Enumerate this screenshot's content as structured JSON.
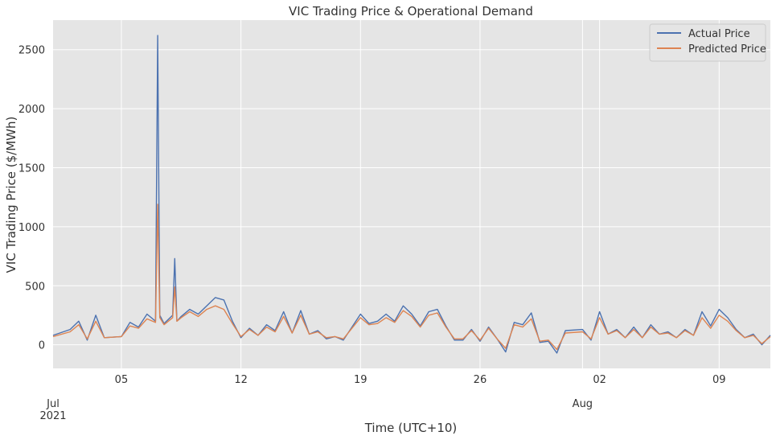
{
  "chart_data": {
    "type": "line",
    "title": "VIC Trading Price & Operational Demand",
    "xlabel": "Time (UTC+10)",
    "ylabel": "VIC Trading Price ($/MWh)",
    "x_start": "2021-07-01",
    "x_end": "2021-08-12",
    "ylim": [
      -200,
      2750
    ],
    "yticks": [
      0,
      500,
      1000,
      1500,
      2000,
      2500
    ],
    "xticks": [
      {
        "date": "2021-07-05",
        "label": "05",
        "sub": ""
      },
      {
        "date": "2021-07-12",
        "label": "12",
        "sub": ""
      },
      {
        "date": "2021-07-19",
        "label": "19",
        "sub": ""
      },
      {
        "date": "2021-07-26",
        "label": "26",
        "sub": ""
      },
      {
        "date": "2021-08-02",
        "label": "02",
        "sub": ""
      },
      {
        "date": "2021-08-09",
        "label": "09",
        "sub": ""
      }
    ],
    "major_xticks": [
      {
        "date": "2021-07-01",
        "label": "Jul",
        "sub": "2021"
      },
      {
        "date": "2021-08-01",
        "label": "Aug",
        "sub": ""
      }
    ],
    "grid": true,
    "legend_position": "top-right",
    "series": [
      {
        "name": "Actual Price",
        "color": "#4c72b0",
        "points": [
          [
            "2021-07-01",
            80
          ],
          [
            "2021-07-02",
            130
          ],
          [
            "2021-07-02T12:00",
            200
          ],
          [
            "2021-07-03",
            40
          ],
          [
            "2021-07-03T12:00",
            250
          ],
          [
            "2021-07-04",
            60
          ],
          [
            "2021-07-05",
            70
          ],
          [
            "2021-07-05T12:00",
            190
          ],
          [
            "2021-07-06",
            150
          ],
          [
            "2021-07-06T12:00",
            260
          ],
          [
            "2021-07-07",
            200
          ],
          [
            "2021-07-07T03:00",
            2620
          ],
          [
            "2021-07-07T06:00",
            250
          ],
          [
            "2021-07-07T12:00",
            180
          ],
          [
            "2021-07-08",
            250
          ],
          [
            "2021-07-08T03:00",
            730
          ],
          [
            "2021-07-08T06:00",
            200
          ],
          [
            "2021-07-08T12:00",
            240
          ],
          [
            "2021-07-09",
            300
          ],
          [
            "2021-07-09T12:00",
            260
          ],
          [
            "2021-07-10",
            330
          ],
          [
            "2021-07-10T12:00",
            400
          ],
          [
            "2021-07-11",
            380
          ],
          [
            "2021-07-11T12:00",
            200
          ],
          [
            "2021-07-12",
            60
          ],
          [
            "2021-07-12T12:00",
            140
          ],
          [
            "2021-07-13",
            80
          ],
          [
            "2021-07-13T12:00",
            170
          ],
          [
            "2021-07-14",
            120
          ],
          [
            "2021-07-14T12:00",
            280
          ],
          [
            "2021-07-15",
            100
          ],
          [
            "2021-07-15T12:00",
            290
          ],
          [
            "2021-07-16",
            90
          ],
          [
            "2021-07-16T12:00",
            120
          ],
          [
            "2021-07-17",
            50
          ],
          [
            "2021-07-17T12:00",
            70
          ],
          [
            "2021-07-18",
            40
          ],
          [
            "2021-07-18T12:00",
            150
          ],
          [
            "2021-07-19",
            260
          ],
          [
            "2021-07-19T12:00",
            180
          ],
          [
            "2021-07-20",
            200
          ],
          [
            "2021-07-20T12:00",
            260
          ],
          [
            "2021-07-21",
            200
          ],
          [
            "2021-07-21T12:00",
            330
          ],
          [
            "2021-07-22",
            260
          ],
          [
            "2021-07-22T12:00",
            160
          ],
          [
            "2021-07-23",
            280
          ],
          [
            "2021-07-23T12:00",
            300
          ],
          [
            "2021-07-24",
            160
          ],
          [
            "2021-07-24T12:00",
            40
          ],
          [
            "2021-07-25",
            40
          ],
          [
            "2021-07-25T12:00",
            130
          ],
          [
            "2021-07-26",
            30
          ],
          [
            "2021-07-26T12:00",
            150
          ],
          [
            "2021-07-27",
            50
          ],
          [
            "2021-07-27T12:00",
            -60
          ],
          [
            "2021-07-28",
            190
          ],
          [
            "2021-07-28T12:00",
            170
          ],
          [
            "2021-07-29",
            270
          ],
          [
            "2021-07-29T12:00",
            20
          ],
          [
            "2021-07-30",
            30
          ],
          [
            "2021-07-30T12:00",
            -70
          ],
          [
            "2021-07-31",
            120
          ],
          [
            "2021-08-01",
            130
          ],
          [
            "2021-08-01T12:00",
            40
          ],
          [
            "2021-08-02",
            280
          ],
          [
            "2021-08-02T12:00",
            90
          ],
          [
            "2021-08-03",
            130
          ],
          [
            "2021-08-03T12:00",
            60
          ],
          [
            "2021-08-04",
            150
          ],
          [
            "2021-08-04T12:00",
            60
          ],
          [
            "2021-08-05",
            170
          ],
          [
            "2021-08-05T12:00",
            90
          ],
          [
            "2021-08-06",
            110
          ],
          [
            "2021-08-06T12:00",
            60
          ],
          [
            "2021-08-07",
            130
          ],
          [
            "2021-08-07T12:00",
            80
          ],
          [
            "2021-08-08",
            280
          ],
          [
            "2021-08-08T12:00",
            160
          ],
          [
            "2021-08-09",
            300
          ],
          [
            "2021-08-09T12:00",
            230
          ],
          [
            "2021-08-10",
            130
          ],
          [
            "2021-08-10T12:00",
            60
          ],
          [
            "2021-08-11",
            90
          ],
          [
            "2021-08-11T12:00",
            0
          ],
          [
            "2021-08-12",
            80
          ]
        ]
      },
      {
        "name": "Predicted Price",
        "color": "#dd8452",
        "points": [
          [
            "2021-07-01",
            70
          ],
          [
            "2021-07-02",
            110
          ],
          [
            "2021-07-02T12:00",
            170
          ],
          [
            "2021-07-03",
            50
          ],
          [
            "2021-07-03T12:00",
            200
          ],
          [
            "2021-07-04",
            60
          ],
          [
            "2021-07-05",
            70
          ],
          [
            "2021-07-05T12:00",
            160
          ],
          [
            "2021-07-06",
            140
          ],
          [
            "2021-07-06T12:00",
            220
          ],
          [
            "2021-07-07",
            190
          ],
          [
            "2021-07-07T03:00",
            1190
          ],
          [
            "2021-07-07T06:00",
            230
          ],
          [
            "2021-07-07T12:00",
            170
          ],
          [
            "2021-07-08",
            230
          ],
          [
            "2021-07-08T03:00",
            490
          ],
          [
            "2021-07-08T06:00",
            200
          ],
          [
            "2021-07-08T12:00",
            230
          ],
          [
            "2021-07-09",
            280
          ],
          [
            "2021-07-09T12:00",
            240
          ],
          [
            "2021-07-10",
            300
          ],
          [
            "2021-07-10T12:00",
            330
          ],
          [
            "2021-07-11",
            300
          ],
          [
            "2021-07-11T12:00",
            180
          ],
          [
            "2021-07-12",
            70
          ],
          [
            "2021-07-12T12:00",
            130
          ],
          [
            "2021-07-13",
            80
          ],
          [
            "2021-07-13T12:00",
            150
          ],
          [
            "2021-07-14",
            110
          ],
          [
            "2021-07-14T12:00",
            240
          ],
          [
            "2021-07-15",
            100
          ],
          [
            "2021-07-15T12:00",
            250
          ],
          [
            "2021-07-16",
            90
          ],
          [
            "2021-07-16T12:00",
            110
          ],
          [
            "2021-07-17",
            60
          ],
          [
            "2021-07-17T12:00",
            70
          ],
          [
            "2021-07-18",
            50
          ],
          [
            "2021-07-18T12:00",
            140
          ],
          [
            "2021-07-19",
            230
          ],
          [
            "2021-07-19T12:00",
            170
          ],
          [
            "2021-07-20",
            180
          ],
          [
            "2021-07-20T12:00",
            230
          ],
          [
            "2021-07-21",
            190
          ],
          [
            "2021-07-21T12:00",
            290
          ],
          [
            "2021-07-22",
            240
          ],
          [
            "2021-07-22T12:00",
            150
          ],
          [
            "2021-07-23",
            250
          ],
          [
            "2021-07-23T12:00",
            270
          ],
          [
            "2021-07-24",
            150
          ],
          [
            "2021-07-24T12:00",
            50
          ],
          [
            "2021-07-25",
            50
          ],
          [
            "2021-07-25T12:00",
            120
          ],
          [
            "2021-07-26",
            40
          ],
          [
            "2021-07-26T12:00",
            140
          ],
          [
            "2021-07-27",
            50
          ],
          [
            "2021-07-27T12:00",
            -30
          ],
          [
            "2021-07-28",
            170
          ],
          [
            "2021-07-28T12:00",
            150
          ],
          [
            "2021-07-29",
            220
          ],
          [
            "2021-07-29T12:00",
            30
          ],
          [
            "2021-07-30",
            40
          ],
          [
            "2021-07-30T12:00",
            -40
          ],
          [
            "2021-07-31",
            100
          ],
          [
            "2021-08-01",
            110
          ],
          [
            "2021-08-01T12:00",
            50
          ],
          [
            "2021-08-02",
            230
          ],
          [
            "2021-08-02T12:00",
            90
          ],
          [
            "2021-08-03",
            120
          ],
          [
            "2021-08-03T12:00",
            60
          ],
          [
            "2021-08-04",
            130
          ],
          [
            "2021-08-04T12:00",
            60
          ],
          [
            "2021-08-05",
            150
          ],
          [
            "2021-08-05T12:00",
            90
          ],
          [
            "2021-08-06",
            100
          ],
          [
            "2021-08-06T12:00",
            60
          ],
          [
            "2021-08-07",
            120
          ],
          [
            "2021-08-07T12:00",
            80
          ],
          [
            "2021-08-08",
            230
          ],
          [
            "2021-08-08T12:00",
            140
          ],
          [
            "2021-08-09",
            250
          ],
          [
            "2021-08-09T12:00",
            200
          ],
          [
            "2021-08-10",
            120
          ],
          [
            "2021-08-10T12:00",
            60
          ],
          [
            "2021-08-11",
            80
          ],
          [
            "2021-08-11T12:00",
            10
          ],
          [
            "2021-08-12",
            70
          ]
        ]
      }
    ]
  }
}
